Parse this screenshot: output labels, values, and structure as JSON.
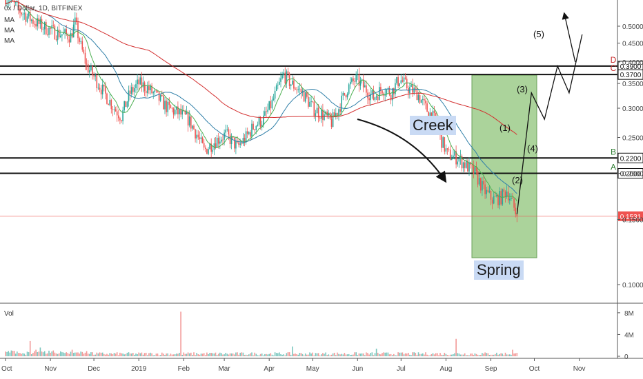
{
  "header": {
    "symbol_line": "0x / Dollar, 1D, BITFINEX",
    "indicators": [
      "MA",
      "MA",
      "MA"
    ]
  },
  "colors": {
    "up": "#26a69a",
    "down": "#ef5350",
    "ma_fast": "#4caf50",
    "ma_mid": "#2f7fa8",
    "ma_slow": "#d32f2f",
    "box_fill": "#8fc47a",
    "label_bg": "#c9daf4",
    "current_price": "#ef5350"
  },
  "chart_data": {
    "type": "candlestick",
    "price_axis_ticks": [
      "0.5000",
      "0.4500",
      "0.4000",
      "0.3500",
      "0.3000",
      "0.2500",
      "0.2000",
      "0.1500",
      "0.1000"
    ],
    "volume_axis_ticks": [
      "8M",
      "4M",
      "0"
    ],
    "volume_label": "Vol",
    "x_ticks": [
      "Oct",
      "Nov",
      "Dec",
      "2019",
      "Feb",
      "Mar",
      "Apr",
      "May",
      "Jun",
      "Jul",
      "Aug",
      "Sep",
      "Oct",
      "Nov"
    ],
    "levels": [
      {
        "letter": "D",
        "price": 0.39,
        "label": "0.3900"
      },
      {
        "letter": "C",
        "price": 0.37,
        "label": "0.3700"
      },
      {
        "letter": "B",
        "price": 0.22,
        "label": "0.2200"
      },
      {
        "letter": "A",
        "price": 0.2,
        "label": "0.2000"
      }
    ],
    "current_price": {
      "price": 0.1531,
      "label": "0.1531"
    },
    "annotations": {
      "creek": "Creek",
      "spring": "Spring",
      "waves": [
        "(1)",
        "(2)",
        "(3)",
        "(4)",
        "(5)"
      ]
    },
    "wave_path": [
      {
        "day": 353,
        "price": 0.155
      },
      {
        "day": 363,
        "price": 0.33
      },
      {
        "day": 372,
        "price": 0.28
      },
      {
        "day": 381,
        "price": 0.39
      },
      {
        "day": 389,
        "price": 0.33
      },
      {
        "day": 398,
        "price": 0.475
      }
    ],
    "close_anchors": [
      [
        0,
        0.6
      ],
      [
        10,
        0.55
      ],
      [
        18,
        0.52
      ],
      [
        25,
        0.5
      ],
      [
        35,
        0.48
      ],
      [
        45,
        0.47
      ],
      [
        48,
        0.51
      ],
      [
        52,
        0.44
      ],
      [
        56,
        0.39
      ],
      [
        62,
        0.36
      ],
      [
        68,
        0.33
      ],
      [
        75,
        0.3
      ],
      [
        80,
        0.285
      ],
      [
        86,
        0.33
      ],
      [
        92,
        0.35
      ],
      [
        98,
        0.34
      ],
      [
        105,
        0.32
      ],
      [
        112,
        0.3
      ],
      [
        120,
        0.29
      ],
      [
        126,
        0.28
      ],
      [
        132,
        0.255
      ],
      [
        137,
        0.23
      ],
      [
        145,
        0.245
      ],
      [
        152,
        0.255
      ],
      [
        160,
        0.235
      ],
      [
        166,
        0.25
      ],
      [
        172,
        0.27
      ],
      [
        178,
        0.28
      ],
      [
        184,
        0.31
      ],
      [
        188,
        0.34
      ],
      [
        192,
        0.37
      ],
      [
        197,
        0.35
      ],
      [
        205,
        0.33
      ],
      [
        212,
        0.3
      ],
      [
        218,
        0.29
      ],
      [
        225,
        0.275
      ],
      [
        230,
        0.3
      ],
      [
        236,
        0.34
      ],
      [
        242,
        0.36
      ],
      [
        248,
        0.34
      ],
      [
        254,
        0.32
      ],
      [
        260,
        0.34
      ],
      [
        266,
        0.33
      ],
      [
        272,
        0.36
      ],
      [
        278,
        0.34
      ],
      [
        284,
        0.33
      ],
      [
        290,
        0.3
      ],
      [
        296,
        0.28
      ],
      [
        300,
        0.25
      ],
      [
        305,
        0.225
      ],
      [
        312,
        0.22
      ],
      [
        318,
        0.21
      ],
      [
        324,
        0.2
      ],
      [
        330,
        0.18
      ],
      [
        336,
        0.17
      ],
      [
        342,
        0.172
      ],
      [
        346,
        0.18
      ],
      [
        350,
        0.165
      ],
      [
        353,
        0.153
      ]
    ],
    "volume_spikes": [
      {
        "day": 17,
        "value": 2.8
      },
      {
        "day": 24,
        "value": 1.6
      },
      {
        "day": 46,
        "value": 1.2
      },
      {
        "day": 121,
        "value": 8.2
      },
      {
        "day": 198,
        "value": 1.8
      },
      {
        "day": 256,
        "value": 1.4
      },
      {
        "day": 311,
        "value": 3.2
      },
      {
        "day": 350,
        "value": 1.2
      }
    ],
    "volume_ylim": [
      0,
      9
    ],
    "price_scale": "log",
    "grid": false
  }
}
